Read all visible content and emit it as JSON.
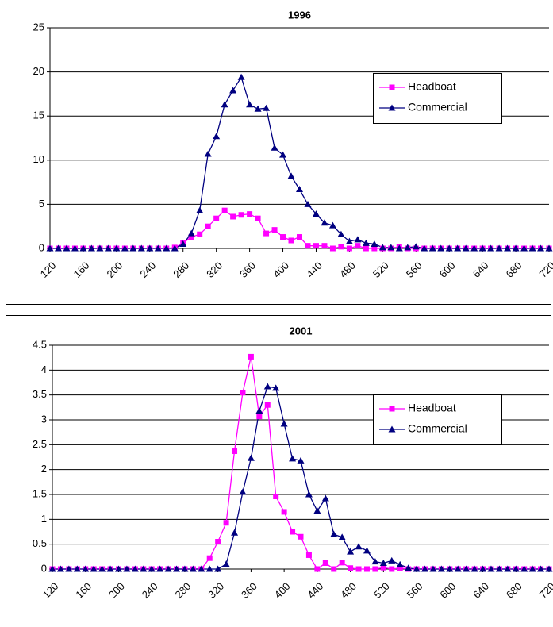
{
  "chart_data": [
    {
      "type": "line",
      "title": "1996",
      "x": [
        120,
        130,
        140,
        150,
        160,
        170,
        180,
        190,
        200,
        210,
        220,
        230,
        240,
        250,
        260,
        270,
        280,
        290,
        300,
        310,
        320,
        330,
        340,
        350,
        360,
        370,
        380,
        390,
        400,
        410,
        420,
        430,
        440,
        450,
        460,
        470,
        480,
        490,
        500,
        510,
        520,
        530,
        540,
        550,
        560,
        570,
        580,
        590,
        600,
        610,
        620,
        630,
        640,
        650,
        660,
        670,
        680,
        690,
        700,
        710,
        720
      ],
      "xlim": [
        120,
        720
      ],
      "xticks": [
        120,
        160,
        200,
        240,
        280,
        320,
        360,
        400,
        440,
        480,
        520,
        560,
        600,
        640,
        680,
        720
      ],
      "ylim": [
        0,
        25
      ],
      "yticks": [
        0,
        5,
        10,
        15,
        20,
        25
      ],
      "grid": true,
      "series": [
        {
          "name": "Headboat",
          "color": "#ff00ff",
          "marker": "square",
          "values": [
            0,
            0,
            0,
            0,
            0,
            0,
            0,
            0,
            0,
            0,
            0,
            0,
            0,
            0,
            0,
            0.1,
            0.6,
            1.3,
            1.6,
            2.5,
            3.4,
            4.3,
            3.6,
            3.8,
            3.9,
            3.4,
            1.7,
            2.1,
            1.3,
            0.9,
            1.3,
            0.3,
            0.3,
            0.3,
            0,
            0.2,
            0,
            0.3,
            0,
            0,
            0,
            0,
            0.2,
            0,
            0,
            0,
            0,
            0,
            0,
            0,
            0,
            0,
            0,
            0,
            0,
            0,
            0,
            0,
            0,
            0,
            0
          ]
        },
        {
          "name": "Commercial",
          "color": "#000080",
          "marker": "triangle",
          "values": [
            0,
            0,
            0,
            0,
            0,
            0,
            0,
            0,
            0,
            0,
            0,
            0,
            0,
            0,
            0,
            0,
            0.5,
            1.7,
            4.3,
            10.7,
            12.7,
            16.3,
            17.9,
            19.4,
            16.3,
            15.8,
            15.9,
            11.4,
            10.6,
            8.2,
            6.7,
            5.0,
            3.9,
            2.9,
            2.6,
            1.6,
            0.8,
            1.0,
            0.6,
            0.5,
            0.1,
            0.1,
            0,
            0.1,
            0.2,
            0,
            0,
            0,
            0,
            0,
            0,
            0,
            0,
            0,
            0,
            0,
            0,
            0,
            0,
            0,
            0
          ]
        }
      ]
    },
    {
      "type": "line",
      "title": "2001",
      "x": [
        120,
        130,
        140,
        150,
        160,
        170,
        180,
        190,
        200,
        210,
        220,
        230,
        240,
        250,
        260,
        270,
        280,
        290,
        300,
        310,
        320,
        330,
        340,
        350,
        360,
        370,
        380,
        390,
        400,
        410,
        420,
        430,
        440,
        450,
        460,
        470,
        480,
        490,
        500,
        510,
        520,
        530,
        540,
        550,
        560,
        570,
        580,
        590,
        600,
        610,
        620,
        630,
        640,
        650,
        660,
        670,
        680,
        690,
        700,
        710,
        720
      ],
      "xlim": [
        120,
        720
      ],
      "xticks": [
        120,
        160,
        200,
        240,
        280,
        320,
        360,
        400,
        440,
        480,
        520,
        560,
        600,
        640,
        680,
        720
      ],
      "ylim": [
        0,
        4.5
      ],
      "yticks": [
        0,
        0.5,
        1,
        1.5,
        2,
        2.5,
        3,
        3.5,
        4,
        4.5
      ],
      "grid": true,
      "series": [
        {
          "name": "Headboat",
          "color": "#ff00ff",
          "marker": "square",
          "values": [
            0,
            0,
            0,
            0,
            0,
            0,
            0,
            0,
            0,
            0,
            0,
            0,
            0,
            0,
            0,
            0,
            0,
            0,
            0,
            0.22,
            0.55,
            0.93,
            2.37,
            3.55,
            4.27,
            3.07,
            3.3,
            1.46,
            1.15,
            0.75,
            0.65,
            0.28,
            0,
            0.12,
            0,
            0.13,
            0.02,
            0,
            0,
            0,
            0.03,
            0,
            0.02,
            0,
            0,
            0,
            0,
            0,
            0,
            0,
            0,
            0,
            0,
            0,
            0,
            0,
            0,
            0,
            0,
            0,
            0
          ]
        },
        {
          "name": "Commercial",
          "color": "#000080",
          "marker": "triangle",
          "values": [
            0,
            0,
            0,
            0,
            0,
            0,
            0,
            0,
            0,
            0,
            0,
            0,
            0,
            0,
            0,
            0,
            0,
            0,
            0,
            0,
            0,
            0.1,
            0.73,
            1.55,
            2.23,
            3.18,
            3.67,
            3.64,
            2.92,
            2.22,
            2.18,
            1.5,
            1.17,
            1.42,
            0.7,
            0.64,
            0.35,
            0.45,
            0.37,
            0.15,
            0.12,
            0.17,
            0.09,
            0.02,
            0,
            0,
            0,
            0,
            0,
            0,
            0,
            0,
            0,
            0,
            0,
            0,
            0,
            0,
            0,
            0,
            0
          ]
        }
      ]
    }
  ]
}
